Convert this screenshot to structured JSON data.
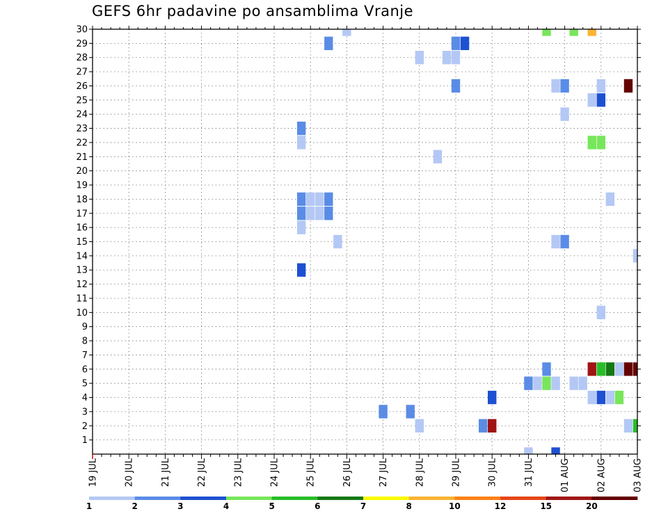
{
  "chart_data": {
    "type": "heatmap",
    "title": "GEFS 6hr padavine po ansamblima Vranje",
    "xlabel": "",
    "ylabel": "",
    "x_tick_labels": [
      "19 JUL",
      "20 JUL",
      "21 JUL",
      "22 JUL",
      "23 JUL",
      "24 JUL",
      "25 JUL",
      "26 JUL",
      "27 JUL",
      "28 JUL",
      "29 JUL",
      "30 JUL",
      "31 JUL",
      "01 AUG",
      "02 AUG",
      "03 AUG"
    ],
    "y_tick_labels": [
      "1",
      "2",
      "3",
      "4",
      "5",
      "6",
      "7",
      "8",
      "9",
      "10",
      "11",
      "12",
      "13",
      "14",
      "15",
      "16",
      "17",
      "18",
      "19",
      "20",
      "21",
      "22",
      "23",
      "24",
      "25",
      "26",
      "27",
      "28",
      "29",
      "30"
    ],
    "x_range_steps": [
      0,
      60
    ],
    "y_range": [
      0,
      30
    ],
    "grid": true,
    "colorbar": {
      "levels": [
        "1",
        "2",
        "3",
        "4",
        "5",
        "6",
        "7",
        "8",
        "10",
        "12",
        "15",
        "20"
      ],
      "colors": [
        "#b4c8f5",
        "#5a8ce6",
        "#1e50d2",
        "#78e65a",
        "#28be28",
        "#147814",
        "#fafa00",
        "#fab432",
        "#fa8214",
        "#e64614",
        "#a01414",
        "#640000"
      ]
    },
    "cells": [
      {
        "step": 28,
        "member": 30,
        "value": 1
      },
      {
        "step": 26,
        "member": 29,
        "value": 2
      },
      {
        "step": 40,
        "member": 29,
        "value": 2
      },
      {
        "step": 41,
        "member": 29,
        "value": 3
      },
      {
        "step": 50,
        "member": 30,
        "value": 4
      },
      {
        "step": 55,
        "member": 30,
        "value": 8
      },
      {
        "step": 40,
        "member": 28,
        "value": 1
      },
      {
        "step": 53,
        "member": 30,
        "value": 4
      },
      {
        "step": 39,
        "member": 28,
        "value": 1
      },
      {
        "step": 36,
        "member": 28,
        "value": 1
      },
      {
        "step": 40,
        "member": 26,
        "value": 2
      },
      {
        "step": 51,
        "member": 26,
        "value": 1
      },
      {
        "step": 52,
        "member": 26,
        "value": 2
      },
      {
        "step": 56,
        "member": 26,
        "value": 1
      },
      {
        "step": 59,
        "member": 26,
        "value": 20
      },
      {
        "step": 55,
        "member": 25,
        "value": 1
      },
      {
        "step": 56,
        "member": 25,
        "value": 3
      },
      {
        "step": 52,
        "member": 24,
        "value": 1
      },
      {
        "step": 23,
        "member": 23,
        "value": 2
      },
      {
        "step": 23,
        "member": 22,
        "value": 1
      },
      {
        "step": 55,
        "member": 22,
        "value": 4
      },
      {
        "step": 56,
        "member": 22,
        "value": 4
      },
      {
        "step": 38,
        "member": 21,
        "value": 1
      },
      {
        "step": 23,
        "member": 18,
        "value": 2
      },
      {
        "step": 24,
        "member": 18,
        "value": 1
      },
      {
        "step": 25,
        "member": 18,
        "value": 1
      },
      {
        "step": 26,
        "member": 18,
        "value": 2
      },
      {
        "step": 57,
        "member": 18,
        "value": 1
      },
      {
        "step": 23,
        "member": 17,
        "value": 2
      },
      {
        "step": 24,
        "member": 17,
        "value": 1
      },
      {
        "step": 25,
        "member": 17,
        "value": 1
      },
      {
        "step": 26,
        "member": 17,
        "value": 2
      },
      {
        "step": 23,
        "member": 16,
        "value": 1
      },
      {
        "step": 27,
        "member": 15,
        "value": 1
      },
      {
        "step": 51,
        "member": 15,
        "value": 1
      },
      {
        "step": 52,
        "member": 15,
        "value": 2
      },
      {
        "step": 60,
        "member": 14,
        "value": 1
      },
      {
        "step": 23,
        "member": 13,
        "value": 3
      },
      {
        "step": 56,
        "member": 10,
        "value": 1
      },
      {
        "step": 50,
        "member": 6,
        "value": 2
      },
      {
        "step": 55,
        "member": 6,
        "value": 15
      },
      {
        "step": 56,
        "member": 6,
        "value": 5
      },
      {
        "step": 57,
        "member": 6,
        "value": 6
      },
      {
        "step": 58,
        "member": 6,
        "value": 1
      },
      {
        "step": 59,
        "member": 6,
        "value": 20
      },
      {
        "step": 60,
        "member": 6,
        "value": 20
      },
      {
        "step": 48,
        "member": 5,
        "value": 2
      },
      {
        "step": 49,
        "member": 5,
        "value": 1
      },
      {
        "step": 50,
        "member": 5,
        "value": 4
      },
      {
        "step": 51,
        "member": 5,
        "value": 1
      },
      {
        "step": 53,
        "member": 5,
        "value": 1
      },
      {
        "step": 54,
        "member": 5,
        "value": 1
      },
      {
        "step": 44,
        "member": 4,
        "value": 3
      },
      {
        "step": 55,
        "member": 4,
        "value": 1
      },
      {
        "step": 56,
        "member": 4,
        "value": 3
      },
      {
        "step": 57,
        "member": 4,
        "value": 1
      },
      {
        "step": 58,
        "member": 4,
        "value": 4
      },
      {
        "step": 32,
        "member": 3,
        "value": 2
      },
      {
        "step": 35,
        "member": 3,
        "value": 2
      },
      {
        "step": 36,
        "member": 2,
        "value": 1
      },
      {
        "step": 43,
        "member": 2,
        "value": 2
      },
      {
        "step": 44,
        "member": 2,
        "value": 15
      },
      {
        "step": 59,
        "member": 2,
        "value": 1
      },
      {
        "step": 60,
        "member": 2,
        "value": 5
      },
      {
        "step": 48,
        "member": 0,
        "value": 1
      },
      {
        "step": 51,
        "member": 0,
        "value": 3
      }
    ]
  }
}
